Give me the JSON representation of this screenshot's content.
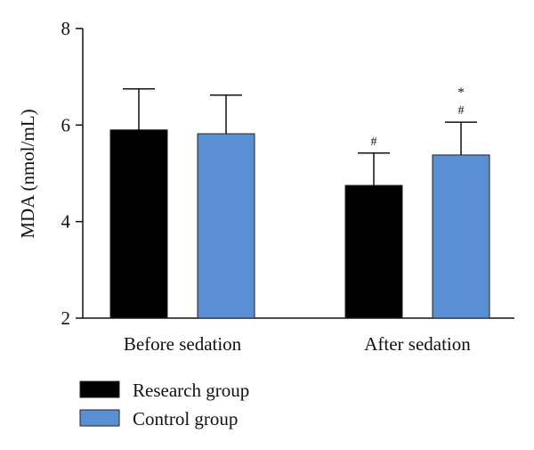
{
  "chart_data": {
    "type": "bar",
    "title": "",
    "xlabel": "",
    "ylabel": "MDA (nmol/mL)",
    "ylim": [
      2,
      8
    ],
    "yticks": [
      2,
      4,
      6,
      8
    ],
    "categories": [
      "Before sedation",
      "After sedation"
    ],
    "series": [
      {
        "name": "Research group",
        "color": "#000000",
        "values": [
          5.9,
          4.75
        ],
        "error": [
          0.85,
          0.67
        ],
        "annotations": [
          "",
          "#"
        ]
      },
      {
        "name": "Control group",
        "color": "#5b8fd4",
        "values": [
          5.82,
          5.38
        ],
        "error": [
          0.8,
          0.68
        ],
        "annotations": [
          "",
          "#"
        ]
      }
    ],
    "extra_annotations": [
      {
        "category": "After sedation",
        "series": "Control group",
        "text": "*"
      }
    ],
    "legend": "bottom-left",
    "grid": false
  }
}
